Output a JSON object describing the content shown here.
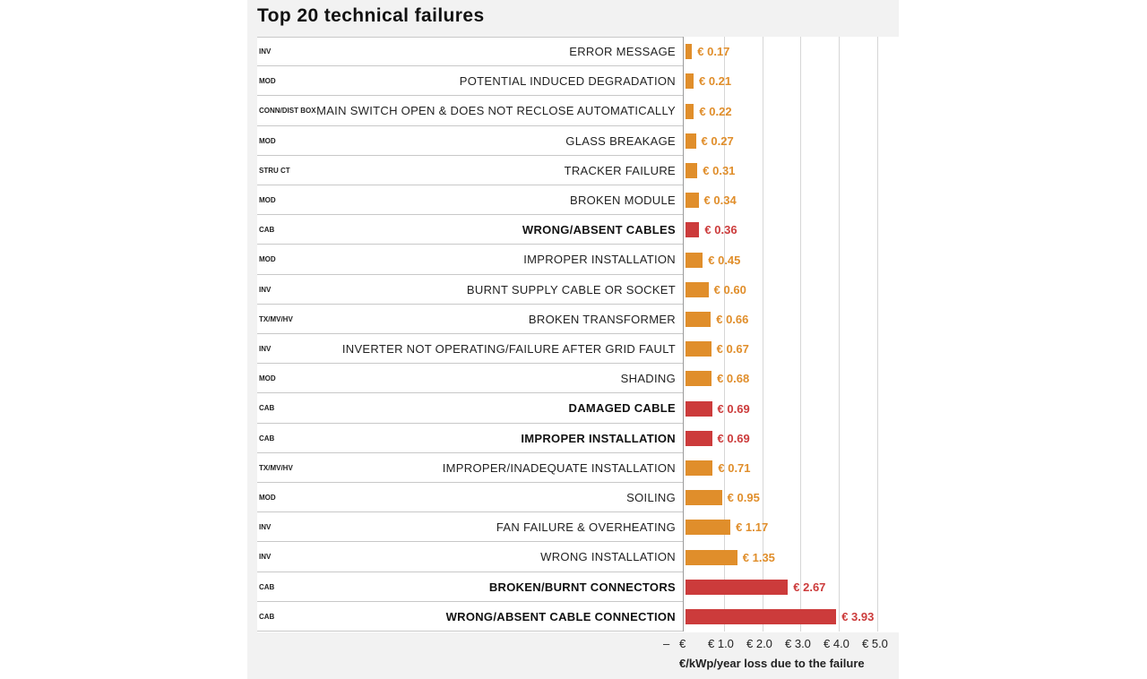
{
  "chart_data": {
    "type": "bar",
    "orientation": "horizontal",
    "title": "Top 20 technical failures",
    "xlabel": "€/kWp/year loss due to the failure",
    "xlim": [
      0,
      5.0
    ],
    "tick_labels": [
      "–",
      "€",
      "€ 1.0",
      "€ 2.0",
      "€ 3.0",
      "€ 4.0",
      "€ 5.0"
    ],
    "colors": {
      "default": "#E08E2B",
      "highlight": "#CC3B3B"
    },
    "rows": [
      {
        "category": "INV",
        "label": "ERROR MESSAGE",
        "value": 0.17,
        "value_label": "€ 0.17",
        "highlight": false
      },
      {
        "category": "MOD",
        "label": "POTENTIAL INDUCED DEGRADATION",
        "value": 0.21,
        "value_label": "€ 0.21",
        "highlight": false
      },
      {
        "category": "CONN/DIST BOX",
        "label": "MAIN SWITCH OPEN & DOES NOT RECLOSE AUTOMATICALLY",
        "value": 0.22,
        "value_label": "€ 0.22",
        "highlight": false
      },
      {
        "category": "MOD",
        "label": "GLASS BREAKAGE",
        "value": 0.27,
        "value_label": "€ 0.27",
        "highlight": false
      },
      {
        "category": "STRU CT",
        "label": "TRACKER FAILURE",
        "value": 0.31,
        "value_label": "€ 0.31",
        "highlight": false
      },
      {
        "category": "MOD",
        "label": "BROKEN MODULE",
        "value": 0.34,
        "value_label": "€ 0.34",
        "highlight": false
      },
      {
        "category": "CAB",
        "label": "WRONG/ABSENT CABLES",
        "value": 0.36,
        "value_label": "€ 0.36",
        "highlight": true
      },
      {
        "category": "MOD",
        "label": "IMPROPER INSTALLATION",
        "value": 0.45,
        "value_label": "€ 0.45",
        "highlight": false
      },
      {
        "category": "INV",
        "label": "BURNT SUPPLY CABLE OR SOCKET",
        "value": 0.6,
        "value_label": "€ 0.60",
        "highlight": false
      },
      {
        "category": "TX/MV/HV",
        "label": "BROKEN TRANSFORMER",
        "value": 0.66,
        "value_label": "€ 0.66",
        "highlight": false
      },
      {
        "category": "INV",
        "label": "INVERTER NOT OPERATING/FAILURE AFTER GRID FAULT",
        "value": 0.67,
        "value_label": "€ 0.67",
        "highlight": false
      },
      {
        "category": "MOD",
        "label": "SHADING",
        "value": 0.68,
        "value_label": "€ 0.68",
        "highlight": false
      },
      {
        "category": "CAB",
        "label": "DAMAGED CABLE",
        "value": 0.69,
        "value_label": "€ 0.69",
        "highlight": true
      },
      {
        "category": "CAB",
        "label": "IMPROPER INSTALLATION",
        "value": 0.69,
        "value_label": "€ 0.69",
        "highlight": true
      },
      {
        "category": "TX/MV/HV",
        "label": "IMPROPER/INADEQUATE INSTALLATION",
        "value": 0.71,
        "value_label": "€ 0.71",
        "highlight": false
      },
      {
        "category": "MOD",
        "label": "SOILING",
        "value": 0.95,
        "value_label": "€ 0.95",
        "highlight": false
      },
      {
        "category": "INV",
        "label": "FAN FAILURE & OVERHEATING",
        "value": 1.17,
        "value_label": "€ 1.17",
        "highlight": false
      },
      {
        "category": "INV",
        "label": "WRONG INSTALLATION",
        "value": 1.35,
        "value_label": "€ 1.35",
        "highlight": false
      },
      {
        "category": "CAB",
        "label": "BROKEN/BURNT CONNECTORS",
        "value": 2.67,
        "value_label": "€ 2.67",
        "highlight": true
      },
      {
        "category": "CAB",
        "label": "WRONG/ABSENT CABLE CONNECTION",
        "value": 3.93,
        "value_label": "€ 3.93",
        "highlight": true
      }
    ]
  }
}
